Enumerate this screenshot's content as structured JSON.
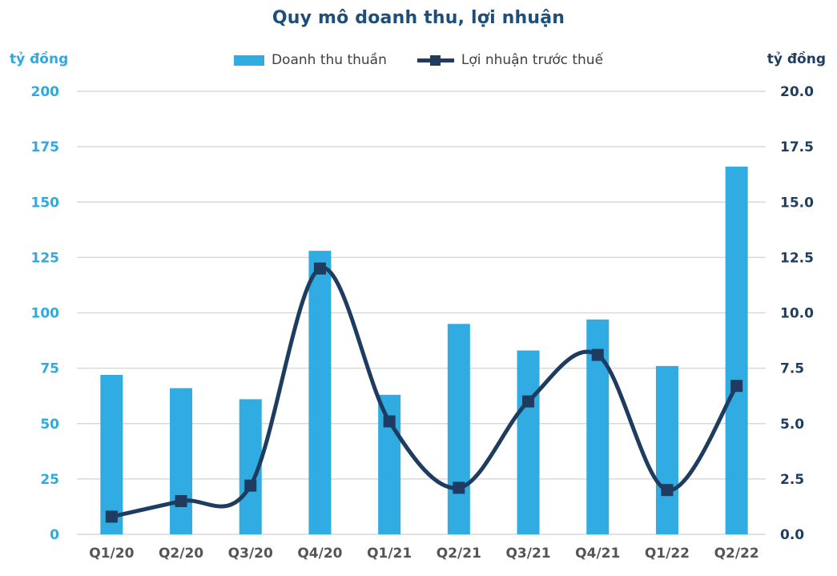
{
  "title": "Quy mô doanh thu, lợi nhuận",
  "colors": {
    "bar": "#31ACE2",
    "line": "#1E3C5F",
    "title": "#1F4E79",
    "left_axis_text": "#2FA9DF",
    "right_axis_text": "#1F3E5F",
    "x_axis_text": "#555555",
    "legend_text": "#404040",
    "gridline": "#D9D9D9",
    "background": "#FFFFFF"
  },
  "legend": {
    "bar_label": "Doanh thu thuần",
    "line_label": "Lợi nhuận trước thuế"
  },
  "chart_data": {
    "type": "bar+line",
    "title": "Quy mô doanh thu, lợi nhuận",
    "categories": [
      "Q1/20",
      "Q2/20",
      "Q3/20",
      "Q4/20",
      "Q1/21",
      "Q2/21",
      "Q3/21",
      "Q4/21",
      "Q1/22",
      "Q2/22"
    ],
    "series": [
      {
        "name": "Doanh thu thuần",
        "type": "bar",
        "axis": "left",
        "values": [
          72,
          66,
          61,
          128,
          63,
          95,
          83,
          97,
          76,
          166
        ]
      },
      {
        "name": "Lợi nhuận trước thuế",
        "type": "line",
        "axis": "right",
        "values": [
          0.8,
          1.5,
          2.2,
          12.0,
          5.1,
          2.1,
          6.0,
          8.1,
          2.0,
          6.7
        ]
      }
    ],
    "left_axis": {
      "unit": "tỷ đồng",
      "min": 0,
      "max": 200,
      "ticks": [
        "0",
        "25",
        "50",
        "75",
        "100",
        "125",
        "150",
        "175",
        "200"
      ]
    },
    "right_axis": {
      "unit": "tỷ đồng",
      "min": 0,
      "max": 20,
      "ticks": [
        "0.0",
        "2.5",
        "5.0",
        "7.5",
        "10.0",
        "12.5",
        "15.0",
        "17.5",
        "20.0"
      ]
    },
    "grid": true,
    "legend_position": "top"
  }
}
